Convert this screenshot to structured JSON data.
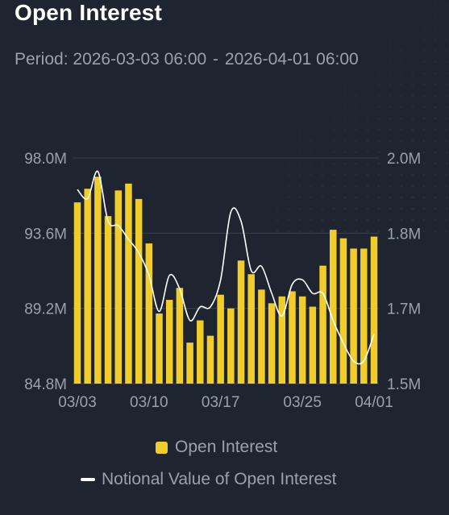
{
  "title": "Open Interest",
  "period": {
    "label": "Period:",
    "start": "2026-03-03 06:00",
    "separator": "-",
    "end": "2026-04-01 06:00"
  },
  "colors": {
    "bar": "#f0cd2a",
    "line": "#ffffff",
    "grid": "#3a414c",
    "axis_text": "#9aa1ab"
  },
  "legend": {
    "bar_label": "Open Interest",
    "line_label": "Notional Value of Open Interest"
  },
  "chart_data": {
    "type": "bar",
    "x_ticks": [
      "03/03",
      "03/10",
      "03/17",
      "03/25",
      "04/01"
    ],
    "x_tick_indices": [
      0,
      7,
      14,
      22,
      29
    ],
    "y_left": {
      "ticks": [
        "98.0M",
        "93.6M",
        "89.2M",
        "84.8M"
      ],
      "range": [
        84.8,
        98.0
      ]
    },
    "y_right": {
      "ticks": [
        "2.0M",
        "1.8M",
        "1.7M",
        "1.5M"
      ],
      "range": [
        1.5,
        2.0
      ]
    },
    "series": [
      {
        "name": "Open Interest",
        "type": "bar",
        "axis": "left",
        "values": [
          95.4,
          96.2,
          96.9,
          94.6,
          96.1,
          96.5,
          95.6,
          93.0,
          88.9,
          89.7,
          90.4,
          87.2,
          88.5,
          87.6,
          90.0,
          89.2,
          92.0,
          91.2,
          90.3,
          89.5,
          89.9,
          90.2,
          89.9,
          89.3,
          91.7,
          93.8,
          93.3,
          92.7,
          92.7,
          93.4
        ]
      },
      {
        "name": "Notional Value of Open Interest",
        "type": "line",
        "axis": "right",
        "values": [
          1.93,
          1.91,
          1.97,
          1.86,
          1.85,
          1.82,
          1.79,
          1.74,
          1.66,
          1.74,
          1.71,
          1.64,
          1.67,
          1.67,
          1.73,
          1.88,
          1.86,
          1.75,
          1.76,
          1.7,
          1.65,
          1.72,
          1.73,
          1.7,
          1.7,
          1.64,
          1.59,
          1.55,
          1.55,
          1.61
        ]
      }
    ]
  }
}
